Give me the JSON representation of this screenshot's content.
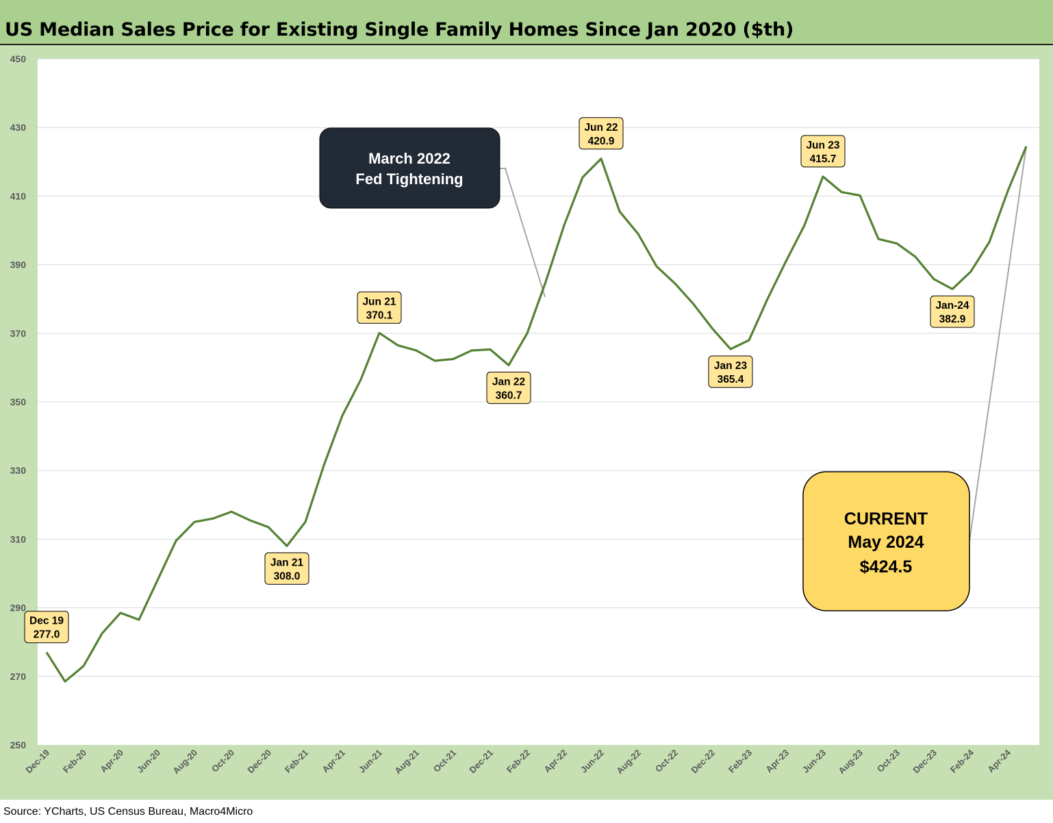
{
  "title": "US Median Sales Price for Existing Single Family Homes Since Jan 2020 ($th)",
  "source": "Source: YCharts, US Census Bureau, Macro4Micro",
  "colors": {
    "header_bg": "#a9d08e",
    "chart_bg": "#c6e0b4",
    "plot_bg": "#ffffff",
    "line": "#548235",
    "callout_fill": "#ffe699",
    "fed_box_fill": "#222a35",
    "current_box_fill": "#ffd966"
  },
  "chart_data": {
    "type": "line",
    "x_tick_labels": [
      "Dec-19",
      "Feb-20",
      "Apr-20",
      "Jun-20",
      "Aug-20",
      "Oct-20",
      "Dec-20",
      "Feb-21",
      "Apr-21",
      "Jun-21",
      "Aug-21",
      "Oct-21",
      "Dec-21",
      "Feb-22",
      "Apr-22",
      "Jun-22",
      "Aug-22",
      "Oct-22",
      "Dec-22",
      "Feb-23",
      "Apr-23",
      "Jun-23",
      "Aug-23",
      "Oct-23",
      "Dec-23",
      "Feb-24",
      "Apr-24"
    ],
    "x": [
      "Dec-19",
      "Jan-20",
      "Feb-20",
      "Mar-20",
      "Apr-20",
      "May-20",
      "Jun-20",
      "Jul-20",
      "Aug-20",
      "Sep-20",
      "Oct-20",
      "Nov-20",
      "Dec-20",
      "Jan-21",
      "Feb-21",
      "Mar-21",
      "Apr-21",
      "May-21",
      "Jun-21",
      "Jul-21",
      "Aug-21",
      "Sep-21",
      "Oct-21",
      "Nov-21",
      "Dec-21",
      "Jan-22",
      "Feb-22",
      "Mar-22",
      "Apr-22",
      "May-22",
      "Jun-22",
      "Jul-22",
      "Aug-22",
      "Sep-22",
      "Oct-22",
      "Nov-22",
      "Dec-22",
      "Jan-23",
      "Feb-23",
      "Mar-23",
      "Apr-23",
      "May-23",
      "Jun-23",
      "Jul-23",
      "Aug-23",
      "Sep-23",
      "Oct-23",
      "Nov-23",
      "Dec-23",
      "Jan-24",
      "Feb-24",
      "Mar-24",
      "Apr-24",
      "May-24"
    ],
    "values": [
      277.0,
      268.5,
      273.0,
      282.5,
      288.5,
      286.5,
      298.0,
      309.5,
      315.0,
      316.0,
      318.0,
      315.5,
      313.5,
      308.0,
      315.0,
      331.5,
      346.0,
      356.5,
      370.1,
      366.5,
      365.0,
      362.0,
      362.5,
      365.0,
      365.3,
      360.7,
      370.0,
      385.0,
      401.5,
      415.5,
      420.9,
      405.5,
      399.0,
      389.5,
      384.5,
      378.5,
      371.5,
      365.4,
      368.0,
      380.0,
      391.0,
      401.5,
      415.7,
      411.2,
      410.2,
      397.5,
      396.2,
      392.3,
      385.8,
      382.9,
      388.0,
      396.6,
      411.5,
      424.5
    ],
    "ylim": [
      250,
      450
    ],
    "yticks": [
      250,
      270,
      290,
      310,
      330,
      350,
      370,
      390,
      410,
      430,
      450
    ],
    "grid": true,
    "callouts": [
      {
        "month": "Dec-19",
        "line1": "Dec 19",
        "line2": "277.0",
        "placement": "above"
      },
      {
        "month": "Jan-21",
        "line1": "Jan 21",
        "line2": "308.0",
        "placement": "below"
      },
      {
        "month": "Jun-21",
        "line1": "Jun 21",
        "line2": "370.1",
        "placement": "above"
      },
      {
        "month": "Jan-22",
        "line1": "Jan 22",
        "line2": "360.7",
        "placement": "below"
      },
      {
        "month": "Jun-22",
        "line1": "Jun 22",
        "line2": "420.9",
        "placement": "above"
      },
      {
        "month": "Jan-23",
        "line1": "Jan 23",
        "line2": "365.4",
        "placement": "below"
      },
      {
        "month": "Jun-23",
        "line1": "Jun 23",
        "line2": "415.7",
        "placement": "above"
      },
      {
        "month": "Jan-24",
        "line1": "Jan-24",
        "line2": "382.9",
        "placement": "below"
      }
    ],
    "fed_annotation": {
      "line1": "March 2022",
      "line2": "Fed Tightening",
      "points_to": "Mar-22"
    },
    "current_annotation": {
      "line1": "CURRENT",
      "line2": "May 2024",
      "line3": "$424.5",
      "points_to": "May-24"
    }
  }
}
